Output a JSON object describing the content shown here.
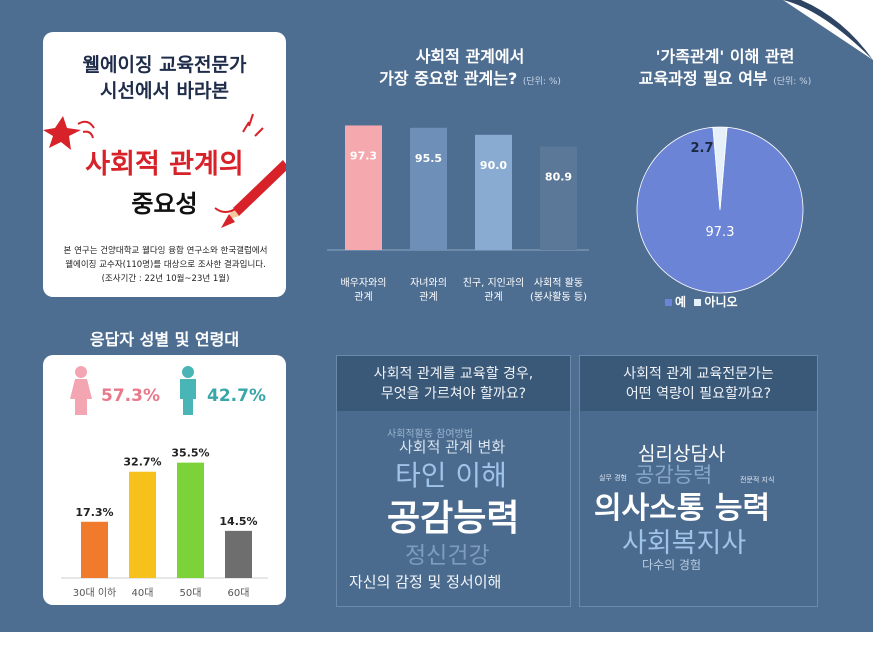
{
  "title_card": {
    "line1": "웰에이징 교육전문가",
    "line2": "시선에서 바라본",
    "line3": "사회적 관계의",
    "line4": "중요성",
    "note1": "본 연구는 건양대학교 웰다잉 융합 연구소와 한국갤럽에서",
    "note2": "웰에이징 교수자(110명)를 대상으로 조사한 결과입니다.",
    "note3": "(조사기간 : 22년 10월~23년 1월)"
  },
  "section1": {
    "title1": "사회적 관계에서",
    "title2": "가장 중요한 관계는?",
    "unit": "(단위: %)"
  },
  "section2": {
    "title1": "'가족관계' 이해 관련",
    "title2": "교육과정 필요 여부",
    "unit": "(단위: %)"
  },
  "demo": {
    "title": "응답자 성별 및 연령대",
    "female_pct": "57.3%",
    "male_pct": "42.7%"
  },
  "cloud1": {
    "q1": "사회적 관계를 교육할 경우,",
    "q2": "무엇을 가르쳐야 할까요?",
    "words": [
      "사회적활동 참여방법",
      "사회적 관계 변화",
      "타인 이해",
      "공감능력",
      "정신건강",
      "자신의 감정 및 정서이해"
    ]
  },
  "cloud2": {
    "q1": "사회적 관계 교육전문가는",
    "q2": "어떤 역량이 필요할까요?",
    "words": [
      "심리상담사",
      "공감능력",
      "실무 경험",
      "전문적 지식",
      "의사소통 능력",
      "사회복지사",
      "다수의 경험"
    ]
  },
  "colors": {
    "background": "#4d6d91",
    "bar1": [
      "#f5a9ae",
      "#6d8fb8",
      "#89abd1",
      "#5b7898"
    ],
    "pie_yes": "#6b84d6",
    "pie_no": "#e6f0f8",
    "age_bars": [
      "#f07b2c",
      "#f5c11a",
      "#7cd239",
      "#6e6e6e"
    ],
    "female": "#e7798a",
    "male": "#3aa6a8"
  },
  "chart_data": [
    {
      "type": "bar",
      "categories": [
        "배우자와의 관계",
        "자녀와의 관계",
        "친구, 지인과의 관계",
        "사회적 활동 (봉사활동 등)"
      ],
      "category_lines": [
        [
          "배우자와의",
          "관계"
        ],
        [
          "자녀와의",
          "관계"
        ],
        [
          "친구, 지인과의",
          "관계"
        ],
        [
          "사회적 활동",
          "(봉사활동 등)"
        ]
      ],
      "values": [
        97.3,
        95.5,
        90.0,
        80.9
      ],
      "value_labels": [
        "97.3",
        "95.5",
        "90.0",
        "80.9"
      ],
      "ylim": [
        0,
        100
      ]
    },
    {
      "type": "pie",
      "labels": [
        "예",
        "아니오"
      ],
      "values": [
        97.3,
        2.7
      ],
      "value_labels": [
        "97.3",
        "2.7"
      ],
      "legend": "bottom"
    },
    {
      "type": "bar",
      "categories": [
        "30대 이하",
        "40대",
        "50대",
        "60대"
      ],
      "values": [
        17.3,
        32.7,
        35.5,
        14.5
      ],
      "value_labels": [
        "17.3%",
        "32.7%",
        "35.5%",
        "14.5%"
      ],
      "ylim": [
        0,
        40
      ]
    }
  ]
}
